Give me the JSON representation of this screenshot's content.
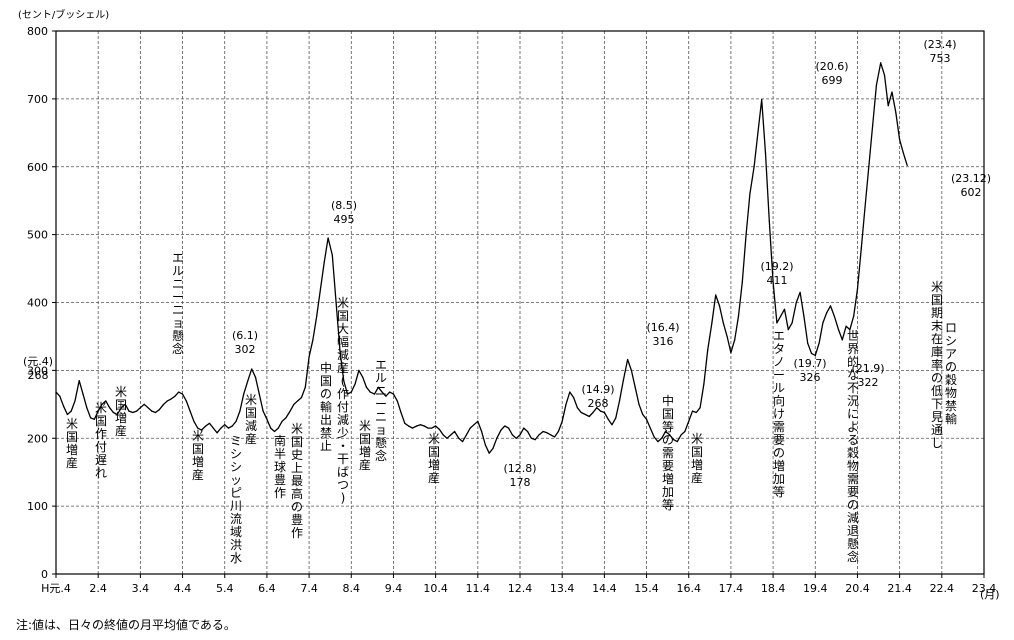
{
  "chart_data": {
    "type": "line",
    "y_unit": "(セント/ブッシェル)",
    "x_unit": "(月)",
    "ylim": [
      0,
      800
    ],
    "y_ticks": [
      "0",
      "100",
      "200",
      "300",
      "400",
      "500",
      "600",
      "700",
      "800"
    ],
    "x_ticks": [
      "H元.4",
      "2.4",
      "3.4",
      "4.4",
      "5.4",
      "6.4",
      "7.4",
      "8.4",
      "9.4",
      "10.4",
      "11.4",
      "12.4",
      "13.4",
      "14.4",
      "15.4",
      "16.4",
      "17.4",
      "18.4",
      "19.4",
      "20.4",
      "21.4",
      "22.4",
      "23.4"
    ],
    "grid": true,
    "series": [
      {
        "values": [
          [
            0.0,
            268
          ],
          [
            0.09,
            262
          ],
          [
            0.18,
            247
          ],
          [
            0.27,
            235
          ],
          [
            0.36,
            240
          ],
          [
            0.45,
            255
          ],
          [
            0.55,
            285
          ],
          [
            0.64,
            265
          ],
          [
            0.73,
            245
          ],
          [
            0.82,
            230
          ],
          [
            0.91,
            228
          ],
          [
            1.0,
            240
          ],
          [
            1.09,
            250
          ],
          [
            1.18,
            255
          ],
          [
            1.27,
            245
          ],
          [
            1.36,
            238
          ],
          [
            1.45,
            235
          ],
          [
            1.55,
            245
          ],
          [
            1.64,
            250
          ],
          [
            1.73,
            240
          ],
          [
            1.82,
            238
          ],
          [
            1.91,
            240
          ],
          [
            2.0,
            245
          ],
          [
            2.09,
            250
          ],
          [
            2.18,
            245
          ],
          [
            2.27,
            240
          ],
          [
            2.36,
            238
          ],
          [
            2.45,
            242
          ],
          [
            2.55,
            250
          ],
          [
            2.64,
            255
          ],
          [
            2.73,
            258
          ],
          [
            2.82,
            262
          ],
          [
            2.91,
            268
          ],
          [
            3.0,
            265
          ],
          [
            3.09,
            255
          ],
          [
            3.18,
            240
          ],
          [
            3.27,
            225
          ],
          [
            3.36,
            215
          ],
          [
            3.45,
            212
          ],
          [
            3.55,
            218
          ],
          [
            3.64,
            222
          ],
          [
            3.73,
            215
          ],
          [
            3.82,
            208
          ],
          [
            3.91,
            215
          ],
          [
            4.0,
            220
          ],
          [
            4.09,
            215
          ],
          [
            4.18,
            218
          ],
          [
            4.27,
            225
          ],
          [
            4.36,
            240
          ],
          [
            4.45,
            265
          ],
          [
            4.55,
            285
          ],
          [
            4.64,
            302
          ],
          [
            4.73,
            290
          ],
          [
            4.82,
            265
          ],
          [
            4.91,
            240
          ],
          [
            5.0,
            228
          ],
          [
            5.09,
            215
          ],
          [
            5.18,
            210
          ],
          [
            5.27,
            215
          ],
          [
            5.36,
            225
          ],
          [
            5.45,
            230
          ],
          [
            5.55,
            240
          ],
          [
            5.64,
            250
          ],
          [
            5.73,
            255
          ],
          [
            5.82,
            260
          ],
          [
            5.91,
            275
          ],
          [
            6.0,
            320
          ],
          [
            6.09,
            345
          ],
          [
            6.18,
            380
          ],
          [
            6.27,
            420
          ],
          [
            6.36,
            460
          ],
          [
            6.45,
            495
          ],
          [
            6.55,
            470
          ],
          [
            6.64,
            400
          ],
          [
            6.73,
            330
          ],
          [
            6.82,
            285
          ],
          [
            6.91,
            265
          ],
          [
            7.0,
            268
          ],
          [
            7.09,
            280
          ],
          [
            7.18,
            300
          ],
          [
            7.27,
            290
          ],
          [
            7.36,
            275
          ],
          [
            7.45,
            268
          ],
          [
            7.55,
            265
          ],
          [
            7.64,
            275
          ],
          [
            7.73,
            268
          ],
          [
            7.82,
            262
          ],
          [
            7.91,
            268
          ],
          [
            8.0,
            265
          ],
          [
            8.09,
            255
          ],
          [
            8.18,
            238
          ],
          [
            8.27,
            222
          ],
          [
            8.36,
            218
          ],
          [
            8.45,
            215
          ],
          [
            8.55,
            218
          ],
          [
            8.64,
            220
          ],
          [
            8.73,
            218
          ],
          [
            8.82,
            215
          ],
          [
            8.91,
            215
          ],
          [
            9.0,
            218
          ],
          [
            9.09,
            213
          ],
          [
            9.18,
            205
          ],
          [
            9.27,
            200
          ],
          [
            9.36,
            205
          ],
          [
            9.45,
            210
          ],
          [
            9.55,
            200
          ],
          [
            9.64,
            195
          ],
          [
            9.73,
            205
          ],
          [
            9.82,
            215
          ],
          [
            9.91,
            220
          ],
          [
            10.0,
            225
          ],
          [
            10.09,
            210
          ],
          [
            10.18,
            190
          ],
          [
            10.27,
            178
          ],
          [
            10.36,
            185
          ],
          [
            10.45,
            200
          ],
          [
            10.55,
            212
          ],
          [
            10.64,
            218
          ],
          [
            10.73,
            215
          ],
          [
            10.82,
            205
          ],
          [
            10.91,
            200
          ],
          [
            11.0,
            205
          ],
          [
            11.09,
            215
          ],
          [
            11.18,
            210
          ],
          [
            11.27,
            200
          ],
          [
            11.36,
            198
          ],
          [
            11.45,
            205
          ],
          [
            11.55,
            210
          ],
          [
            11.64,
            208
          ],
          [
            11.73,
            205
          ],
          [
            11.82,
            202
          ],
          [
            11.91,
            210
          ],
          [
            12.0,
            225
          ],
          [
            12.09,
            250
          ],
          [
            12.18,
            268
          ],
          [
            12.27,
            260
          ],
          [
            12.36,
            245
          ],
          [
            12.45,
            238
          ],
          [
            12.55,
            235
          ],
          [
            12.64,
            232
          ],
          [
            12.73,
            238
          ],
          [
            12.82,
            245
          ],
          [
            12.91,
            240
          ],
          [
            13.0,
            238
          ],
          [
            13.09,
            228
          ],
          [
            13.18,
            220
          ],
          [
            13.27,
            230
          ],
          [
            13.36,
            255
          ],
          [
            13.45,
            285
          ],
          [
            13.55,
            316
          ],
          [
            13.64,
            300
          ],
          [
            13.73,
            275
          ],
          [
            13.82,
            250
          ],
          [
            13.91,
            235
          ],
          [
            14.0,
            228
          ],
          [
            14.09,
            215
          ],
          [
            14.18,
            202
          ],
          [
            14.27,
            195
          ],
          [
            14.36,
            200
          ],
          [
            14.45,
            210
          ],
          [
            14.55,
            205
          ],
          [
            14.64,
            198
          ],
          [
            14.73,
            195
          ],
          [
            14.82,
            205
          ],
          [
            14.91,
            210
          ],
          [
            15.0,
            225
          ],
          [
            15.09,
            240
          ],
          [
            15.18,
            238
          ],
          [
            15.27,
            245
          ],
          [
            15.36,
            280
          ],
          [
            15.45,
            330
          ],
          [
            15.55,
            370
          ],
          [
            15.64,
            411
          ],
          [
            15.73,
            395
          ],
          [
            15.82,
            370
          ],
          [
            15.91,
            350
          ],
          [
            16.0,
            326
          ],
          [
            16.09,
            345
          ],
          [
            16.18,
            380
          ],
          [
            16.27,
            430
          ],
          [
            16.36,
            500
          ],
          [
            16.45,
            560
          ],
          [
            16.55,
            600
          ],
          [
            16.64,
            650
          ],
          [
            16.73,
            699
          ],
          [
            16.82,
            620
          ],
          [
            16.91,
            520
          ],
          [
            17.0,
            430
          ],
          [
            17.09,
            370
          ],
          [
            17.18,
            380
          ],
          [
            17.27,
            390
          ],
          [
            17.36,
            360
          ],
          [
            17.45,
            370
          ],
          [
            17.55,
            400
          ],
          [
            17.64,
            415
          ],
          [
            17.73,
            380
          ],
          [
            17.82,
            340
          ],
          [
            17.91,
            325
          ],
          [
            18.0,
            322
          ],
          [
            18.09,
            340
          ],
          [
            18.18,
            370
          ],
          [
            18.27,
            385
          ],
          [
            18.36,
            395
          ],
          [
            18.45,
            380
          ],
          [
            18.55,
            360
          ],
          [
            18.64,
            345
          ],
          [
            18.73,
            365
          ],
          [
            18.82,
            360
          ],
          [
            18.91,
            380
          ],
          [
            19.0,
            420
          ],
          [
            19.09,
            480
          ],
          [
            19.18,
            540
          ],
          [
            19.27,
            600
          ],
          [
            19.36,
            660
          ],
          [
            19.45,
            720
          ],
          [
            19.55,
            753
          ],
          [
            19.64,
            735
          ],
          [
            19.73,
            690
          ],
          [
            19.82,
            710
          ],
          [
            19.91,
            680
          ],
          [
            20.0,
            640
          ],
          [
            20.09,
            620
          ],
          [
            20.18,
            602
          ]
        ]
      }
    ],
    "annotations": [
      {
        "x": 0.0,
        "y": 268,
        "period": "(元.4)",
        "value": "268"
      },
      {
        "x": 4.64,
        "y": 302,
        "period": "(6.1)",
        "value": "302"
      },
      {
        "x": 6.45,
        "y": 495,
        "period": "(8.5)",
        "value": "495"
      },
      {
        "x": 10.27,
        "y": 178,
        "period": "(12.8)",
        "value": "178"
      },
      {
        "x": 12.18,
        "y": 268,
        "period": "(14.9)",
        "value": "268"
      },
      {
        "x": 13.55,
        "y": 316,
        "period": "(16.4)",
        "value": "316"
      },
      {
        "x": 15.64,
        "y": 411,
        "period": "(19.2)",
        "value": "411"
      },
      {
        "x": 16.0,
        "y": 326,
        "period": "(19.7)",
        "value": "326"
      },
      {
        "x": 16.73,
        "y": 699,
        "period": "(20.6)",
        "value": "699"
      },
      {
        "x": 18.0,
        "y": 322,
        "period": "(21.9)",
        "value": "322"
      },
      {
        "x": 19.55,
        "y": 753,
        "period": "(23.4)",
        "value": "753"
      },
      {
        "x": 20.18,
        "y": 602,
        "period": "(23.12)",
        "value": "602"
      }
    ],
    "events": [
      "米国増産",
      "米国作付遅れ",
      "米国増産",
      "エルニーニョ懸念",
      "米国増産",
      "ミシシッピ川流域洪水",
      "米国減産",
      "南半球豊作",
      "米国史上最高の豊作",
      "中国の輸出禁止",
      "米国大幅減産(作付減少・干ばつ)",
      "米国増産",
      "エルニーニョ懸念",
      "米国増産",
      "中国等の需要増加等",
      "米国増産",
      "エタノール向け需要の増加等",
      "世界的な不況による穀物需要の減退懸念",
      "米国期末在庫率の低下見通し",
      "ロシアの穀物禁輸"
    ]
  },
  "note": "注:値は、日々の終値の月平均値である。"
}
